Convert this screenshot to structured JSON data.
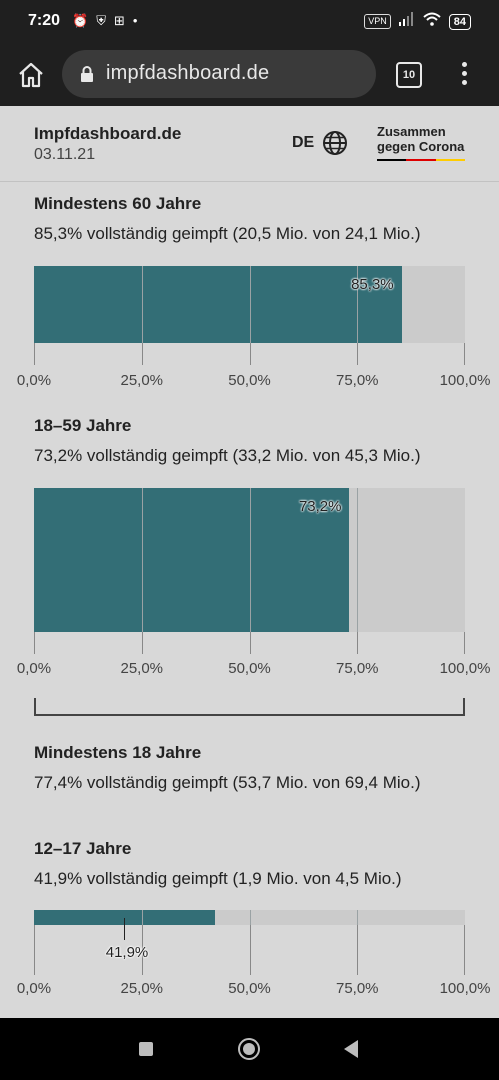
{
  "status_bar": {
    "time": "7:20",
    "vpn": "VPN",
    "battery": "84"
  },
  "browser": {
    "url": "impfdashboard.de",
    "tab_count": "10"
  },
  "header": {
    "title": "Impfdashboard.de",
    "date": "03.11.21",
    "language": "DE",
    "logo_line1": "Zusammen",
    "logo_line2": "gegen Corona"
  },
  "colors": {
    "bar_fill": "#336e76",
    "bar_track": "#cbcbcb",
    "flag": [
      "#000000",
      "#dd0000",
      "#ffcc00"
    ]
  },
  "axis_ticks": [
    "0,0%",
    "25,0%",
    "50,0%",
    "75,0%",
    "100,0%"
  ],
  "sections": [
    {
      "title": "Mindestens 60 Jahre",
      "subtitle": "85,3% vollständig geimpft (20,5 Mio. von 24,1 Mio.)",
      "percent": 85.3,
      "label": "85,3%"
    },
    {
      "title": "18–59 Jahre",
      "subtitle": "73,2% vollständig geimpft (33,2 Mio. von 45,3 Mio.)",
      "percent": 73.2,
      "label": "73,2%"
    },
    {
      "title": "Mindestens 18 Jahre",
      "subtitle": "77,4% vollständig geimpft (53,7 Mio. von 69,4 Mio.)"
    },
    {
      "title": "12–17 Jahre",
      "subtitle": "41,9% vollständig geimpft (1,9 Mio. von 4,5 Mio.)",
      "percent": 41.9,
      "label": "41,9%"
    }
  ],
  "chart_data": [
    {
      "type": "bar",
      "categories": [
        "Mindestens 60 Jahre"
      ],
      "values": [
        85.3
      ],
      "xlim": [
        0,
        100
      ],
      "tick_labels": [
        "0,0%",
        "25,0%",
        "50,0%",
        "75,0%",
        "100,0%"
      ],
      "data_labels": [
        "85,3%"
      ],
      "grid": true
    },
    {
      "type": "bar",
      "categories": [
        "18–59 Jahre"
      ],
      "values": [
        73.2
      ],
      "xlim": [
        0,
        100
      ],
      "tick_labels": [
        "0,0%",
        "25,0%",
        "50,0%",
        "75,0%",
        "100,0%"
      ],
      "data_labels": [
        "73,2%"
      ],
      "grid": true
    },
    {
      "type": "bar",
      "categories": [
        "12–17 Jahre"
      ],
      "values": [
        41.9
      ],
      "xlim": [
        0,
        100
      ],
      "tick_labels": [
        "0,0%",
        "25,0%",
        "50,0%",
        "75,0%",
        "100,0%"
      ],
      "data_labels": [
        "41,9%"
      ],
      "grid": true
    }
  ]
}
